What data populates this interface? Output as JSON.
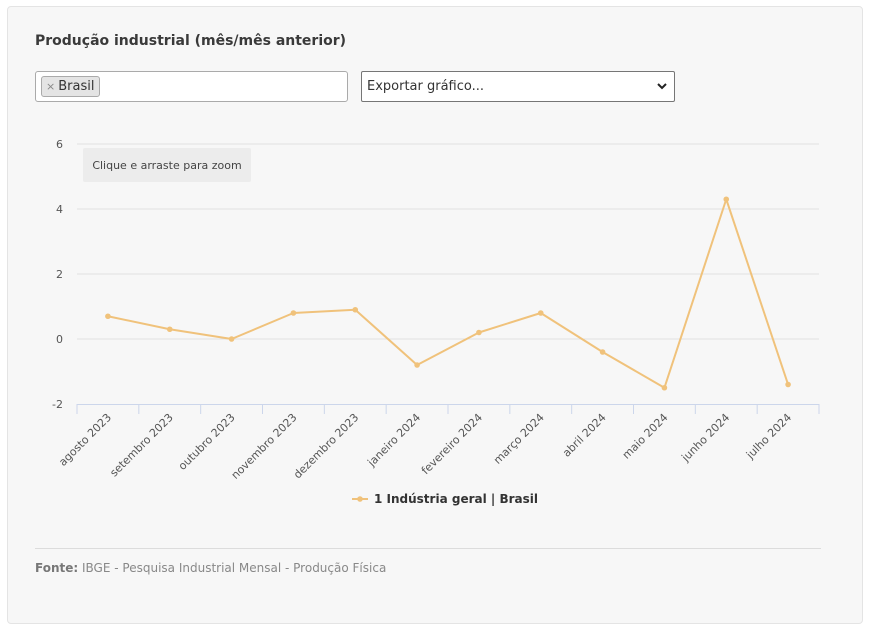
{
  "title": "Produção industrial (mês/mês anterior)",
  "filter": {
    "tags": [
      "Brasil"
    ],
    "remove_symbol": "×"
  },
  "export_select": {
    "selected": "Exportar gráfico..."
  },
  "zoom_hint": "Clique e arraste para zoom",
  "source": {
    "label": "Fonte:",
    "text": "IBGE - Pesquisa Industrial Mensal - Produção Física"
  },
  "chart_data": {
    "type": "line",
    "categories": [
      "agosto 2023",
      "setembro 2023",
      "outubro 2023",
      "novembro 2023",
      "dezembro 2023",
      "janeiro 2024",
      "fevereiro 2024",
      "março 2024",
      "abril 2024",
      "maio 2024",
      "junho 2024",
      "julho 2024"
    ],
    "series": [
      {
        "name": "1 Indústria geral | Brasil",
        "color": "#f0c27b",
        "values": [
          0.7,
          0.3,
          0.0,
          0.8,
          0.9,
          -0.8,
          0.2,
          0.8,
          -0.4,
          -1.5,
          4.3,
          -1.4
        ]
      }
    ],
    "ylim": [
      -2,
      6
    ],
    "yticks": [
      -2,
      0,
      2,
      4,
      6
    ],
    "grid": true,
    "legend": "bottom-center"
  }
}
